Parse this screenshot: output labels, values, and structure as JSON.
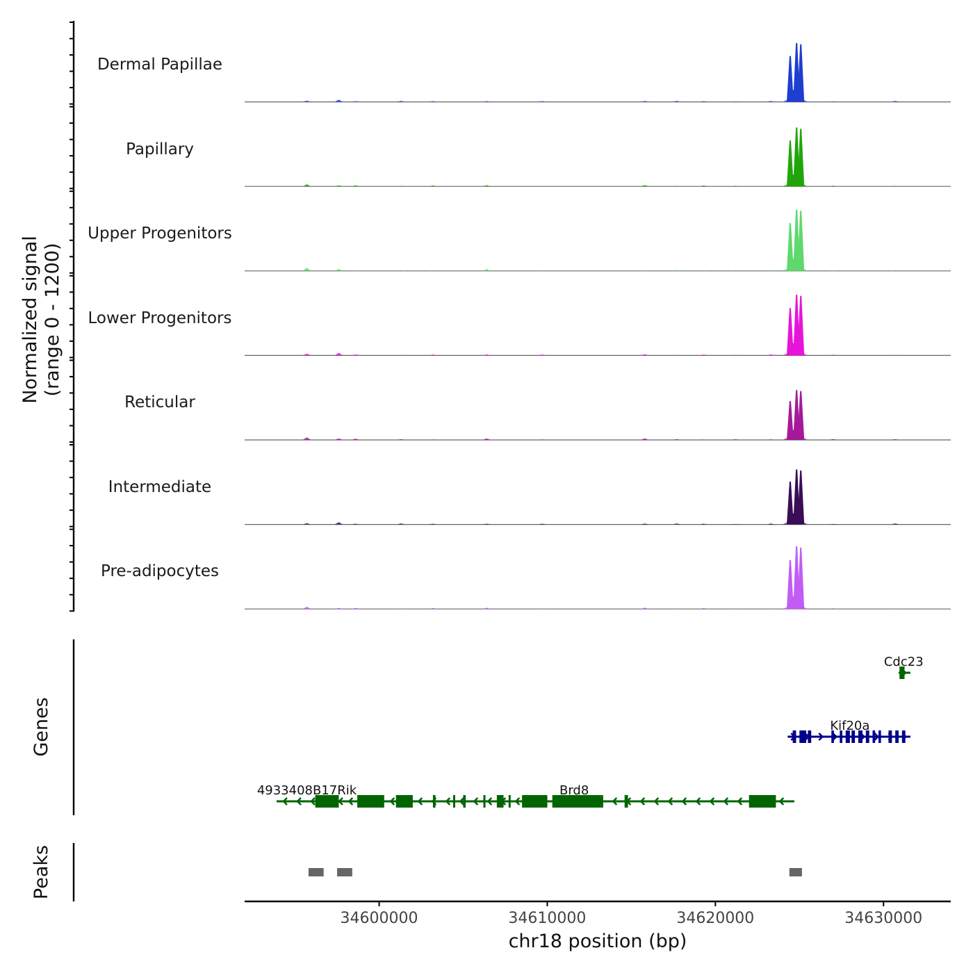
{
  "chart_data": {
    "type": "area",
    "title": "",
    "ylabel_line1": "Normalized signal",
    "ylabel_line2": "(range 0 - 1200)",
    "genes_label": "Genes",
    "peaks_label": "Peaks",
    "xlabel": "chr18 position (bp)",
    "x_range": [
      34592000,
      34634000
    ],
    "y_range": [
      0,
      1200
    ],
    "x_ticks": [
      34600000,
      34610000,
      34620000,
      34630000
    ],
    "x_tick_labels": [
      "34600000",
      "34610000",
      "34620000",
      "34630000"
    ],
    "tracks": [
      {
        "name": "Dermal Papillae",
        "color": "#1e3ecf"
      },
      {
        "name": "Papillary",
        "color": "#22a50b"
      },
      {
        "name": "Upper Progenitors",
        "color": "#5fd86e"
      },
      {
        "name": "Lower Progenitors",
        "color": "#e614d9"
      },
      {
        "name": "Reticular",
        "color": "#a5199a"
      },
      {
        "name": "Intermediate",
        "color": "#3a0d57"
      },
      {
        "name": "Pre-adipocytes",
        "color": "#c25cf5"
      }
    ],
    "signal_peaks_bp": [
      {
        "pos": 34624450,
        "rel": 0.78
      },
      {
        "pos": 34624830,
        "rel": 1.0
      },
      {
        "pos": 34625080,
        "rel": 0.98
      },
      {
        "pos": 34624640,
        "rel": 0.2
      }
    ],
    "genes": [
      {
        "name": "4933408B17Rik",
        "strand": "-",
        "color": "#006400",
        "start": 34593900,
        "end": 34597800,
        "label_pos": 34595700,
        "row": 3,
        "exons": [
          [
            34596200,
            34597600
          ]
        ]
      },
      {
        "name": "Brd8",
        "strand": "-",
        "color": "#006400",
        "start": 34597800,
        "end": 34624700,
        "label_pos": 34611600,
        "row": 3,
        "exons": [
          [
            34598700,
            34600300
          ],
          [
            34601000,
            34602000
          ],
          [
            34603200,
            34603350
          ],
          [
            34604400,
            34604500
          ],
          [
            34605000,
            34605150
          ],
          [
            34606200,
            34606300
          ],
          [
            34607000,
            34607400
          ],
          [
            34607700,
            34607800
          ],
          [
            34608500,
            34610000
          ],
          [
            34610300,
            34611200
          ],
          [
            34611200,
            34613200
          ],
          [
            34613200,
            34613300
          ],
          [
            34614600,
            34614800
          ],
          [
            34622000,
            34623600
          ]
        ]
      },
      {
        "name": "Kif20a",
        "strand": "+",
        "color": "#00008b",
        "start": 34624300,
        "end": 34631600,
        "label_pos": 34628000,
        "row": 2,
        "exons": [
          [
            34624600,
            34624800
          ],
          [
            34625000,
            34625400
          ],
          [
            34625500,
            34625700
          ],
          [
            34626900,
            34627050
          ],
          [
            34627400,
            34627550
          ],
          [
            34627750,
            34628000
          ],
          [
            34628100,
            34628300
          ],
          [
            34628500,
            34628750
          ],
          [
            34628950,
            34629150
          ],
          [
            34629350,
            34629500
          ],
          [
            34629700,
            34629850
          ],
          [
            34630300,
            34630500
          ],
          [
            34630700,
            34630900
          ],
          [
            34631100,
            34631300
          ]
        ]
      },
      {
        "name": "Cdc23",
        "strand": "+",
        "color": "#006400",
        "start": 34630900,
        "end": 34631600,
        "label_pos": 34631200,
        "row": 1,
        "exons": [
          [
            34630950,
            34631250
          ]
        ]
      }
    ],
    "peaks": [
      {
        "start": 34595800,
        "end": 34596700
      },
      {
        "start": 34597500,
        "end": 34598400
      },
      {
        "start": 34624400,
        "end": 34625150
      }
    ]
  }
}
